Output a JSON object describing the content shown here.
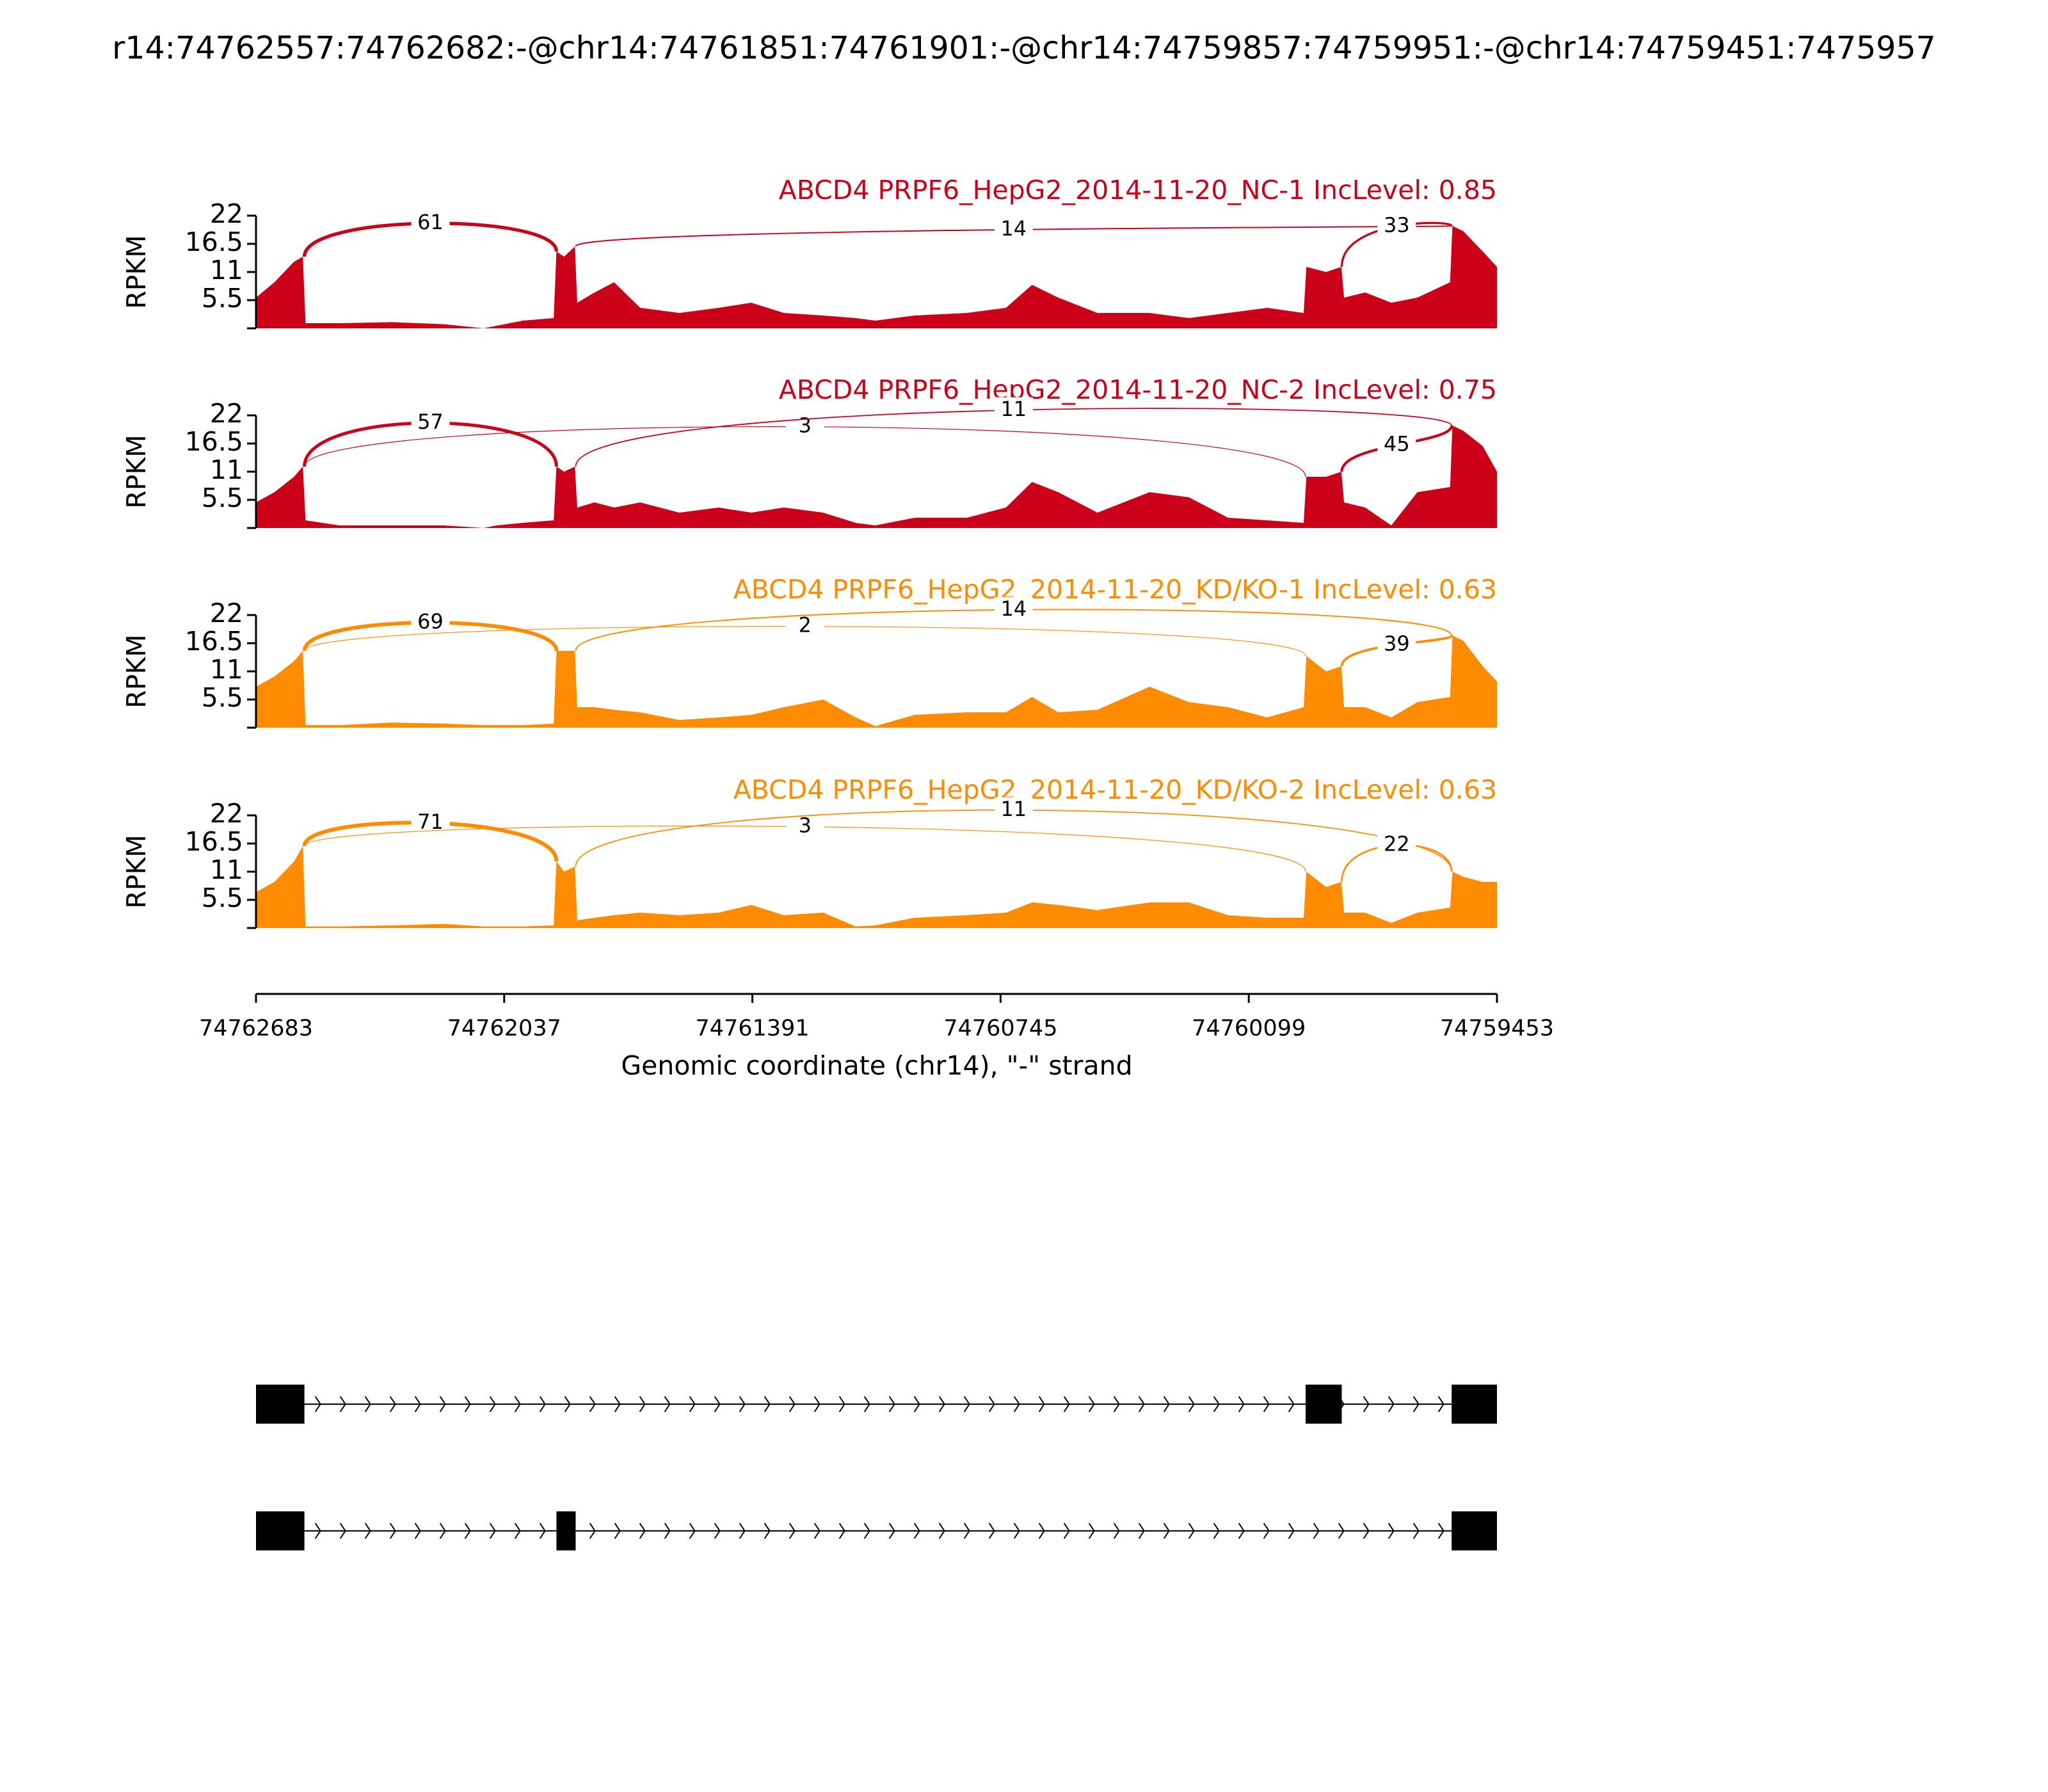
{
  "chart_data": {
    "type": "sashimi",
    "title": "r14:74762557:74762682:-@chr14:74761851:74761901:-@chr14:74759857:74759951:-@chr14:74759451:7475957",
    "xlabel": "Genomic coordinate (chr14), \"-\" strand",
    "ylabel": "RPKM",
    "xlim": [
      74762683,
      74759453
    ],
    "xticks": [
      74762683,
      74762037,
      74761391,
      74760745,
      74760099,
      74759453
    ],
    "ylim": [
      0,
      22
    ],
    "yticks": [
      5.5,
      11,
      16.5,
      22
    ],
    "x": [
      74762683,
      74762635,
      74762584,
      74762561,
      74762554,
      74762465,
      74762329,
      74762193,
      74762091,
      74762057,
      74761989,
      74761908,
      74761901,
      74761881,
      74761853,
      74761847,
      74761802,
      74761751,
      74761683,
      74761581,
      74761479,
      74761394,
      74761309,
      74761207,
      74761122,
      74761071,
      74760969,
      74760833,
      74760731,
      74760663,
      74760595,
      74760493,
      74760357,
      74760255,
      74760153,
      74760051,
      74759956,
      74759949,
      74759898,
      74759858,
      74759851,
      74759796,
      74759728,
      74759660,
      74759575,
      74759569,
      74759541,
      74759490,
      74759453
    ],
    "panels": [
      {
        "label": "ABCD4 PRPF6_HepG2_2014-11-20_NC-1 IncLevel: 0.85",
        "color": "#cc0019",
        "coverage": [
          6,
          9,
          13,
          14,
          1,
          1,
          1.2,
          0.8,
          0,
          0.5,
          1.5,
          2,
          15,
          14,
          16,
          5,
          7,
          9,
          4,
          3,
          4,
          5,
          3,
          2.5,
          2,
          1.5,
          2.5,
          3,
          4,
          8.5,
          6,
          3,
          3,
          2,
          3,
          4,
          3,
          12,
          11,
          12,
          6,
          7,
          5,
          6,
          9,
          20,
          19,
          15,
          12
        ],
        "junctions": [
          {
            "start": 74762557,
            "end": 74761901,
            "count": 61
          },
          {
            "start": 74761851,
            "end": 74759571,
            "count": 14
          },
          {
            "start": 74759857,
            "end": 74759571,
            "count": 33
          }
        ]
      },
      {
        "label": "ABCD4 PRPF6_HepG2_2014-11-20_NC-2 IncLevel: 0.75",
        "color": "#cc0019",
        "coverage": [
          5,
          7,
          10,
          12,
          1.5,
          0.5,
          0.5,
          0.5,
          0,
          0.5,
          1,
          1.5,
          12,
          11,
          12,
          4,
          5,
          4,
          5,
          3,
          4,
          3,
          4,
          3,
          1,
          0.5,
          2,
          2,
          4,
          9,
          7,
          3,
          7,
          6,
          2,
          1.5,
          1,
          10,
          10,
          11,
          5,
          4,
          0.5,
          7,
          8,
          20,
          19,
          16,
          11
        ],
        "junctions": [
          {
            "start": 74762557,
            "end": 74761901,
            "count": 57
          },
          {
            "start": 74762557,
            "end": 74759951,
            "count": 3
          },
          {
            "start": 74761851,
            "end": 74759571,
            "count": 11
          },
          {
            "start": 74759857,
            "end": 74759571,
            "count": 45
          }
        ]
      },
      {
        "label": "ABCD4 PRPF6_HepG2_2014-11-20_KD/KO-1 IncLevel: 0.63",
        "color": "#ff8c00",
        "coverage": [
          8,
          10,
          13,
          15,
          0.5,
          0.5,
          1,
          0.8,
          0.5,
          0.5,
          0.5,
          0.8,
          15,
          15,
          15,
          4,
          4,
          3.5,
          3,
          1.5,
          2,
          2.5,
          4,
          5.5,
          2,
          0.3,
          2.5,
          3,
          3,
          6,
          3,
          3.5,
          8,
          5,
          4,
          2,
          4,
          14,
          11,
          12,
          4,
          4,
          2,
          5,
          6,
          18,
          17,
          12,
          9
        ],
        "junctions": [
          {
            "start": 74762557,
            "end": 74761901,
            "count": 69
          },
          {
            "start": 74762557,
            "end": 74759951,
            "count": 2
          },
          {
            "start": 74761851,
            "end": 74759571,
            "count": 14
          },
          {
            "start": 74759857,
            "end": 74759571,
            "count": 39
          }
        ]
      },
      {
        "label": "ABCD4 PRPF6_HepG2_2014-11-20_KD/KO-2 IncLevel: 0.63",
        "color": "#ff8c00",
        "coverage": [
          7,
          9,
          13,
          16,
          0.3,
          0.3,
          0.5,
          0.8,
          0.3,
          0.3,
          0.3,
          0.5,
          13,
          11,
          12,
          1.5,
          2,
          2.5,
          3,
          2.5,
          3,
          4.5,
          2.5,
          3,
          0.3,
          0.5,
          2,
          2.5,
          3,
          5,
          4.5,
          3.5,
          5,
          5,
          2.5,
          2,
          2,
          11,
          8,
          9,
          3,
          3,
          1,
          3,
          4,
          11,
          10,
          9,
          9
        ],
        "junctions": [
          {
            "start": 74762557,
            "end": 74761901,
            "count": 71
          },
          {
            "start": 74762557,
            "end": 74759951,
            "count": 3
          },
          {
            "start": 74761851,
            "end": 74759571,
            "count": 11
          },
          {
            "start": 74759857,
            "end": 74759571,
            "count": 22
          }
        ]
      }
    ],
    "isoforms": [
      {
        "exons": [
          [
            74762683,
            74762557
          ],
          [
            74759951,
            74759857
          ],
          [
            74759571,
            74759453
          ]
        ]
      },
      {
        "exons": [
          [
            74762683,
            74762557
          ],
          [
            74761901,
            74761851
          ],
          [
            74759571,
            74759453
          ]
        ]
      }
    ]
  }
}
